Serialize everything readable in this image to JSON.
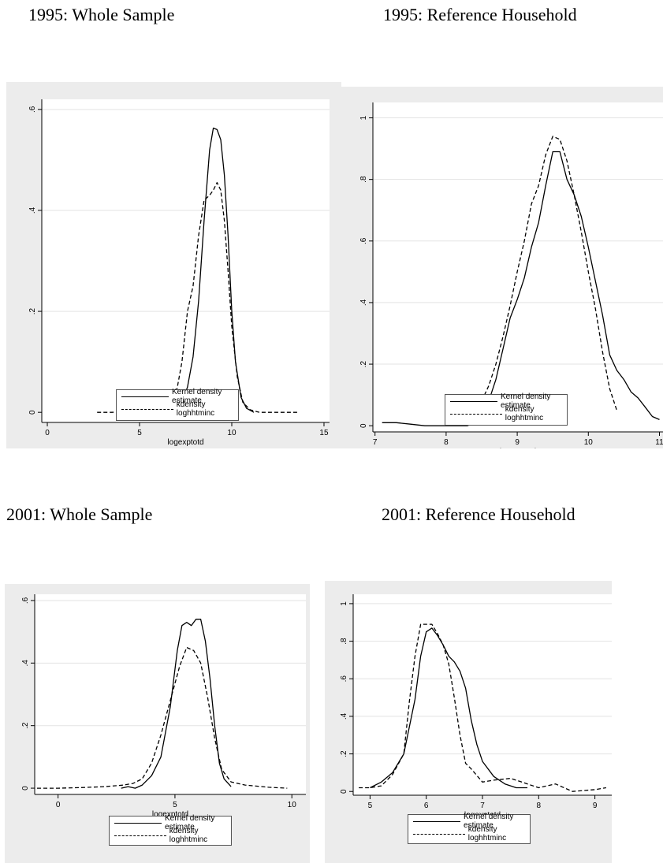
{
  "headings": {
    "h1995_whole": "1995: Whole Sample",
    "h1995_ref": "1995: Reference Household",
    "h2001_whole": "2001: Whole Sample",
    "h2001_ref": "2001: Reference Household"
  },
  "chart_data": [
    {
      "type": "line",
      "title": "1995: Whole Sample",
      "xlabel": "logexptotd",
      "xlim": [
        -0.3,
        15.3
      ],
      "ylim": [
        -0.02,
        0.62
      ],
      "xticks": [
        "0",
        "5",
        "10",
        "15"
      ],
      "yticks": [
        "0",
        ".2",
        ".4",
        ".6"
      ],
      "legend_position": "bottom",
      "series": [
        {
          "name": "Kernel density estimate",
          "style": "solid",
          "x": [
            5.8,
            6.3,
            6.8,
            7.3,
            7.6,
            7.9,
            8.2,
            8.5,
            8.8,
            9.0,
            9.2,
            9.4,
            9.6,
            9.8,
            10.0,
            10.2,
            10.5,
            10.8,
            11.2
          ],
          "y": [
            0.0,
            0.003,
            0.008,
            0.02,
            0.05,
            0.11,
            0.22,
            0.38,
            0.52,
            0.563,
            0.56,
            0.54,
            0.47,
            0.35,
            0.2,
            0.1,
            0.03,
            0.008,
            0.0
          ]
        },
        {
          "name": "kdensity loghhtminc",
          "style": "dashed",
          "x": [
            2.7,
            3.5,
            4.5,
            5.5,
            6.5,
            7.0,
            7.3,
            7.6,
            7.9,
            8.2,
            8.5,
            8.8,
            9.0,
            9.2,
            9.4,
            9.6,
            9.8,
            10.0,
            10.3,
            10.6,
            11.0,
            11.5,
            12.5,
            13.6
          ],
          "y": [
            0.0,
            0.0,
            0.002,
            0.004,
            0.01,
            0.04,
            0.1,
            0.2,
            0.25,
            0.35,
            0.42,
            0.43,
            0.44,
            0.455,
            0.44,
            0.38,
            0.28,
            0.17,
            0.07,
            0.02,
            0.005,
            0.0,
            0.0,
            0.0
          ]
        }
      ]
    },
    {
      "type": "line",
      "title": "1995: Reference Household",
      "xlabel": "logexptotd",
      "xlim": [
        6.97,
        11.05
      ],
      "ylim": [
        -0.02,
        1.05
      ],
      "xticks": [
        "7",
        "8",
        "9",
        "10",
        "11"
      ],
      "yticks": [
        "0",
        ".2",
        ".4",
        ".6",
        ".8",
        "1"
      ],
      "legend_position": "bottom",
      "series": [
        {
          "name": "Kernel density estimate",
          "style": "solid",
          "x": [
            7.1,
            7.3,
            7.5,
            7.7,
            8.0,
            8.3,
            8.4,
            8.5,
            8.6,
            8.7,
            8.8,
            8.9,
            9.0,
            9.1,
            9.2,
            9.3,
            9.4,
            9.5,
            9.6,
            9.7,
            9.8,
            9.9,
            10.0,
            10.1,
            10.2,
            10.3,
            10.4,
            10.5,
            10.6,
            10.7,
            10.8,
            10.9,
            11.0
          ],
          "y": [
            0.01,
            0.01,
            0.005,
            0.0,
            0.0,
            0.0,
            0.01,
            0.04,
            0.08,
            0.15,
            0.25,
            0.35,
            0.41,
            0.48,
            0.58,
            0.66,
            0.78,
            0.89,
            0.89,
            0.8,
            0.75,
            0.68,
            0.58,
            0.47,
            0.36,
            0.23,
            0.18,
            0.15,
            0.11,
            0.09,
            0.06,
            0.03,
            0.02
          ]
        },
        {
          "name": "kdensity loghhtminc",
          "style": "dashed",
          "x": [
            8.2,
            8.4,
            8.5,
            8.6,
            8.7,
            8.8,
            8.9,
            9.0,
            9.1,
            9.2,
            9.3,
            9.4,
            9.5,
            9.6,
            9.7,
            9.8,
            9.9,
            10.0,
            10.1,
            10.2,
            10.3,
            10.4
          ],
          "y": [
            0.04,
            0.06,
            0.08,
            0.13,
            0.2,
            0.29,
            0.39,
            0.5,
            0.6,
            0.72,
            0.78,
            0.88,
            0.94,
            0.93,
            0.86,
            0.75,
            0.63,
            0.5,
            0.38,
            0.24,
            0.12,
            0.05
          ]
        }
      ]
    },
    {
      "type": "line",
      "title": "2001: Whole Sample",
      "xlabel": "logexptotd",
      "xlim": [
        -1.0,
        10.6
      ],
      "ylim": [
        -0.02,
        0.62
      ],
      "xticks": [
        "0",
        "5",
        "10"
      ],
      "yticks": [
        "0",
        ".2",
        ".4",
        ".6"
      ],
      "legend_position": "bottom",
      "series": [
        {
          "name": "Kernel density estimate",
          "style": "solid",
          "x": [
            2.7,
            3.0,
            3.3,
            3.6,
            4.0,
            4.4,
            4.8,
            5.1,
            5.3,
            5.5,
            5.7,
            5.9,
            6.1,
            6.3,
            6.5,
            6.7,
            6.9,
            7.1,
            7.4
          ],
          "y": [
            0.0,
            0.005,
            0.0,
            0.01,
            0.04,
            0.1,
            0.26,
            0.44,
            0.52,
            0.53,
            0.52,
            0.54,
            0.54,
            0.47,
            0.35,
            0.2,
            0.08,
            0.03,
            0.005
          ]
        },
        {
          "name": "kdensity loghhtminc",
          "style": "dashed",
          "x": [
            -0.9,
            0.0,
            1.0,
            2.0,
            2.8,
            3.2,
            3.6,
            4.0,
            4.4,
            4.8,
            5.2,
            5.5,
            5.8,
            6.1,
            6.4,
            6.7,
            7.0,
            7.4,
            8.0,
            9.0,
            9.8
          ],
          "y": [
            0.0,
            0.0,
            0.002,
            0.005,
            0.01,
            0.015,
            0.03,
            0.08,
            0.17,
            0.28,
            0.39,
            0.45,
            0.44,
            0.4,
            0.29,
            0.16,
            0.06,
            0.02,
            0.01,
            0.003,
            0.0
          ]
        }
      ]
    },
    {
      "type": "line",
      "title": "2001: Reference Household",
      "xlabel": "logexptotd",
      "xlim": [
        4.7,
        9.3
      ],
      "ylim": [
        -0.02,
        1.05
      ],
      "xticks": [
        "5",
        "6",
        "7",
        "8",
        "9"
      ],
      "yticks": [
        "0",
        ".2",
        ".4",
        ".6",
        ".8",
        "1"
      ],
      "legend_position": "bottom",
      "series": [
        {
          "name": "Kernel density estimate",
          "style": "solid",
          "x": [
            5.0,
            5.2,
            5.4,
            5.6,
            5.8,
            5.9,
            6.0,
            6.1,
            6.2,
            6.3,
            6.4,
            6.5,
            6.6,
            6.7,
            6.8,
            6.9,
            7.0,
            7.2,
            7.4,
            7.6,
            7.8
          ],
          "y": [
            0.02,
            0.05,
            0.1,
            0.2,
            0.49,
            0.72,
            0.85,
            0.87,
            0.83,
            0.78,
            0.72,
            0.69,
            0.64,
            0.55,
            0.38,
            0.25,
            0.16,
            0.08,
            0.04,
            0.02,
            0.02
          ]
        },
        {
          "name": "kdensity loghhtminc",
          "style": "dashed",
          "x": [
            4.8,
            5.0,
            5.2,
            5.4,
            5.6,
            5.7,
            5.8,
            5.9,
            6.0,
            6.1,
            6.2,
            6.3,
            6.4,
            6.5,
            6.6,
            6.7,
            6.8,
            7.0,
            7.2,
            7.5,
            7.7,
            8.0,
            8.3,
            8.6,
            9.0,
            9.2
          ],
          "y": [
            0.02,
            0.02,
            0.03,
            0.09,
            0.2,
            0.48,
            0.72,
            0.89,
            0.89,
            0.89,
            0.84,
            0.78,
            0.68,
            0.5,
            0.3,
            0.15,
            0.12,
            0.05,
            0.06,
            0.07,
            0.05,
            0.02,
            0.04,
            0.0,
            0.01,
            0.02
          ]
        }
      ]
    }
  ]
}
